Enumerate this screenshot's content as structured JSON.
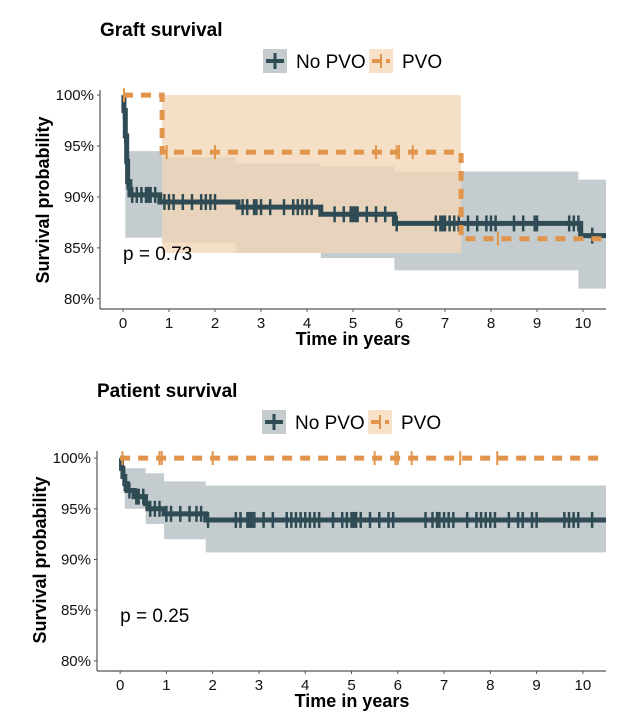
{
  "colors": {
    "no_pvo_line": "#2f4b54",
    "no_pvo_band": "#b3bec2",
    "pvo_line": "#e0954a",
    "pvo_band": "#f2d6b6"
  },
  "chart_data": [
    {
      "type": "line",
      "subtype": "kaplan-meier",
      "title": "Graft survival",
      "xlabel": "Time in years",
      "ylabel": "Survival probability",
      "xlim": [
        -0.5,
        10.5
      ],
      "ylim": [
        0.79,
        1.005
      ],
      "x_ticks": [
        0,
        1,
        2,
        3,
        4,
        5,
        6,
        7,
        8,
        9,
        10
      ],
      "x_tick_labels": [
        "0",
        "1",
        "2",
        "3",
        "4",
        "5",
        "6",
        "7",
        "8",
        "9",
        "10"
      ],
      "y_ticks": [
        0.8,
        0.85,
        0.9,
        0.95,
        1.0
      ],
      "y_tick_labels": [
        "80%",
        "85%",
        "90%",
        "95%",
        "100%"
      ],
      "grid": false,
      "legend": {
        "placement": "top",
        "entries": [
          "No PVO",
          "PVO"
        ]
      },
      "annotation": "p = 0.73",
      "annotation_pos": [
        0,
        0.845
      ],
      "series": [
        {
          "name": "No PVO",
          "style": "solid",
          "steps": [
            [
              0,
              1.0
            ],
            [
              0.02,
              0.985
            ],
            [
              0.05,
              0.96
            ],
            [
              0.08,
              0.935
            ],
            [
              0.1,
              0.915
            ],
            [
              0.15,
              0.902
            ],
            [
              0.8,
              0.895
            ],
            [
              2.5,
              0.89
            ],
            [
              4.3,
              0.883
            ],
            [
              5.9,
              0.874
            ],
            [
              9.95,
              0.862
            ],
            [
              10.5,
              0.862
            ]
          ],
          "band": [
            [
              0,
              1.0,
              1.0
            ],
            [
              0.05,
              0.945,
              0.86
            ],
            [
              0.85,
              0.939,
              0.855
            ],
            [
              2.45,
              0.933,
              0.845
            ],
            [
              4.3,
              0.93,
              0.84
            ],
            [
              5.9,
              0.925,
              0.828
            ],
            [
              9.9,
              0.917,
              0.81
            ],
            [
              10.5,
              0.917,
              0.81
            ]
          ],
          "censor_times": [
            0.02,
            0.05,
            0.1,
            0.2,
            0.3,
            0.4,
            0.5,
            0.55,
            0.6,
            0.7,
            0.9,
            1.0,
            1.1,
            1.3,
            1.5,
            1.7,
            1.8,
            1.9,
            2.0,
            2.6,
            2.7,
            2.85,
            2.9,
            3.0,
            3.2,
            3.5,
            3.7,
            3.8,
            3.9,
            4.0,
            4.1,
            4.6,
            4.8,
            4.95,
            5.0,
            5.05,
            5.1,
            5.3,
            5.5,
            5.7,
            5.95,
            6.8,
            6.9,
            6.95,
            7.0,
            7.1,
            7.2,
            7.3,
            7.5,
            7.7,
            7.9,
            8.0,
            8.1,
            8.5,
            8.7,
            8.95,
            9.0,
            9.7,
            9.8,
            9.9,
            10.2
          ]
        },
        {
          "name": "PVO",
          "style": "dashed",
          "steps": [
            [
              0,
              1.0
            ],
            [
              0.85,
              0.944
            ],
            [
              7.35,
              0.859
            ],
            [
              10.5,
              0.859
            ]
          ],
          "band": [
            [
              0,
              1.0,
              1.0
            ],
            [
              0.85,
              1.0,
              0.845
            ],
            [
              7.35,
              1.0,
              0.845
            ]
          ],
          "censor_times": [
            0.02,
            0.95,
            2.0,
            5.5,
            5.95,
            6.0,
            6.3,
            8.15
          ]
        }
      ]
    },
    {
      "type": "line",
      "subtype": "kaplan-meier",
      "title": "Patient survival",
      "xlabel": "Time in years",
      "ylabel": "Survival probability",
      "xlim": [
        -0.5,
        10.5
      ],
      "ylim": [
        0.79,
        1.007
      ],
      "x_ticks": [
        0,
        1,
        2,
        3,
        4,
        5,
        6,
        7,
        8,
        9,
        10
      ],
      "x_tick_labels": [
        "0",
        "1",
        "2",
        "3",
        "4",
        "5",
        "6",
        "7",
        "8",
        "9",
        "10"
      ],
      "y_ticks": [
        0.8,
        0.85,
        0.9,
        0.95,
        1.0
      ],
      "y_tick_labels": [
        "80%",
        "85%",
        "90%",
        "95%",
        "100%"
      ],
      "grid": false,
      "legend": {
        "placement": "top",
        "entries": [
          "No PVO",
          "PVO"
        ]
      },
      "annotation": "p = 0.25",
      "annotation_pos": [
        0,
        0.845
      ],
      "series": [
        {
          "name": "No PVO",
          "style": "solid",
          "steps": [
            [
              0,
              1.0
            ],
            [
              0.03,
              0.99
            ],
            [
              0.06,
              0.982
            ],
            [
              0.1,
              0.975
            ],
            [
              0.15,
              0.968
            ],
            [
              0.3,
              0.962
            ],
            [
              0.55,
              0.955
            ],
            [
              0.6,
              0.95
            ],
            [
              0.95,
              0.945
            ],
            [
              1.85,
              0.939
            ],
            [
              10.5,
              0.939
            ]
          ],
          "band": [
            [
              0,
              1.0,
              1.0
            ],
            [
              0.1,
              0.99,
              0.95
            ],
            [
              0.55,
              0.985,
              0.935
            ],
            [
              0.95,
              0.977,
              0.92
            ],
            [
              1.85,
              0.973,
              0.907
            ],
            [
              10.5,
              0.973,
              0.907
            ]
          ],
          "censor_times": [
            0.05,
            0.1,
            0.2,
            0.35,
            0.4,
            0.5,
            0.65,
            0.75,
            0.85,
            1.0,
            1.1,
            1.3,
            1.5,
            1.65,
            1.75,
            1.9,
            2.5,
            2.6,
            2.75,
            2.8,
            2.85,
            2.9,
            3.1,
            3.3,
            3.6,
            3.7,
            3.8,
            3.9,
            4.0,
            4.1,
            4.2,
            4.3,
            4.6,
            4.8,
            4.9,
            5.0,
            5.05,
            5.1,
            5.2,
            5.4,
            5.6,
            5.8,
            5.9,
            6.6,
            6.75,
            6.85,
            6.9,
            7.0,
            7.1,
            7.2,
            7.5,
            7.7,
            7.8,
            7.9,
            8.0,
            8.1,
            8.4,
            8.6,
            8.7,
            8.9,
            9.0,
            9.6,
            9.7,
            9.8,
            9.9,
            10.2
          ]
        },
        {
          "name": "PVO",
          "style": "dashed",
          "steps": [
            [
              0,
              1.0
            ],
            [
              10.5,
              1.0
            ]
          ],
          "band": [],
          "censor_times": [
            0.05,
            0.85,
            0.9,
            2.0,
            5.5,
            5.95,
            6.0,
            6.3,
            7.35,
            8.15
          ]
        }
      ]
    }
  ]
}
